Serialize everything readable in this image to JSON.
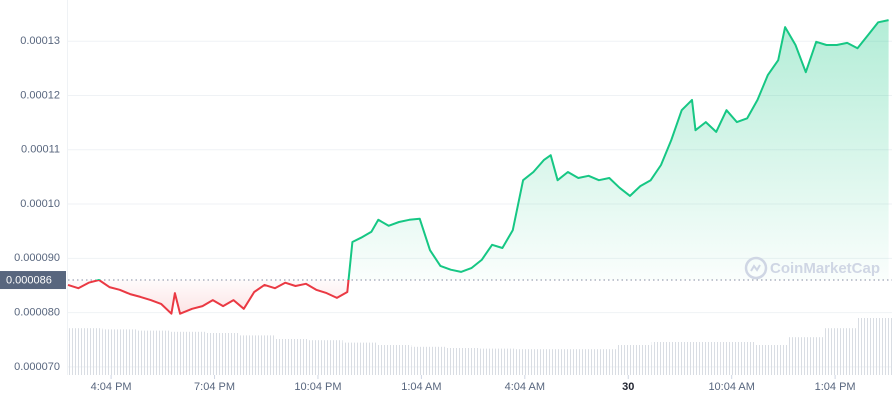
{
  "chart_data": {
    "type": "line",
    "x": [
      0,
      0.3,
      0.6,
      0.9,
      1.2,
      1.5,
      1.8,
      2.1,
      2.4,
      2.7,
      3.0,
      3.1,
      3.25,
      3.6,
      3.9,
      4.2,
      4.5,
      4.8,
      5.1,
      5.4,
      5.7,
      6.0,
      6.3,
      6.6,
      6.9,
      7.2,
      7.5,
      7.8,
      8.1,
      8.25,
      8.5,
      8.8,
      9.0,
      9.3,
      9.6,
      9.9,
      10.2,
      10.5,
      10.8,
      11.1,
      11.4,
      11.7,
      12.0,
      12.3,
      12.6,
      12.9,
      13.2,
      13.5,
      13.8,
      14.0,
      14.2,
      14.5,
      14.8,
      15.1,
      15.4,
      15.7,
      16.0,
      16.3,
      16.6,
      16.9,
      17.2,
      17.5,
      17.8,
      18.1,
      18.2,
      18.5,
      18.8,
      19.1,
      19.4,
      19.7,
      20.0,
      20.3,
      20.6,
      20.8,
      21.1,
      21.4,
      21.7,
      22.0,
      22.3,
      22.6,
      22.9,
      23.2,
      23.5,
      23.8
    ],
    "values": [
      8.51e-05,
      8.45e-05,
      8.55e-05,
      8.6e-05,
      8.47e-05,
      8.42e-05,
      8.34e-05,
      8.29e-05,
      8.23e-05,
      8.16e-05,
      7.98e-05,
      8.36e-05,
      7.98e-05,
      8.07e-05,
      8.12e-05,
      8.23e-05,
      8.12e-05,
      8.23e-05,
      8.07e-05,
      8.38e-05,
      8.51e-05,
      8.45e-05,
      8.55e-05,
      8.49e-05,
      8.53e-05,
      8.42e-05,
      8.36e-05,
      8.27e-05,
      8.38e-05,
      9.3e-05,
      9.38e-05,
      9.49e-05,
      9.71e-05,
      9.6e-05,
      9.67e-05,
      9.71e-05,
      9.73e-05,
      9.15e-05,
      8.86e-05,
      8.79e-05,
      8.75e-05,
      8.82e-05,
      8.97e-05,
      9.25e-05,
      9.19e-05,
      9.52e-05,
      0.0001044,
      0.0001059,
      0.0001081,
      0.000109,
      0.0001044,
      0.0001059,
      0.0001048,
      0.0001052,
      0.0001044,
      0.0001048,
      0.000103,
      0.0001015,
      0.0001033,
      0.0001044,
      0.0001072,
      0.0001118,
      0.0001173,
      0.0001192,
      0.0001136,
      0.0001151,
      0.0001133,
      0.0001173,
      0.0001151,
      0.0001158,
      0.0001192,
      0.0001238,
      0.0001265,
      0.0001326,
      0.0001293,
      0.0001243,
      0.0001299,
      0.0001293,
      0.0001293,
      0.0001297,
      0.0001287,
      0.0001311,
      0.0001335,
      0.0001339
    ],
    "up_color": "#16c784",
    "down_color": "#ea3943",
    "xlim": [
      0,
      23.9
    ],
    "xticks": [
      {
        "value": 1.25,
        "label": "4:04 PM"
      },
      {
        "value": 4.25,
        "label": "7:04 PM"
      },
      {
        "value": 7.25,
        "label": "10:04 PM"
      },
      {
        "value": 10.25,
        "label": "1:04 AM"
      },
      {
        "value": 13.25,
        "label": "4:04 AM"
      },
      {
        "value": 16.25,
        "label": "30"
      },
      {
        "value": 19.25,
        "label": "10:04 AM"
      },
      {
        "value": 22.25,
        "label": "1:04 PM"
      }
    ],
    "ylim": [
      6.85e-05,
      0.0001376
    ],
    "yticks": [
      {
        "value": 7e-05,
        "label": "0.000070"
      },
      {
        "value": 8e-05,
        "label": "0.000080"
      },
      {
        "value": 9e-05,
        "label": "0.000090"
      },
      {
        "value": 0.0001,
        "label": "0.00010"
      },
      0.00011,
      0.00012,
      0.00013
    ],
    "grid": true,
    "reference_line": {
      "value": 8.6e-05,
      "label": "0.000086"
    },
    "watermark": "CoinMarketCap",
    "volume": {
      "ylim": [
        0,
        100
      ],
      "values": [
        78,
        76,
        74,
        72,
        70,
        66,
        60,
        58,
        54,
        50,
        47,
        45,
        44,
        43,
        43,
        43,
        50,
        55,
        55,
        55,
        50,
        63,
        78,
        95
      ]
    }
  }
}
